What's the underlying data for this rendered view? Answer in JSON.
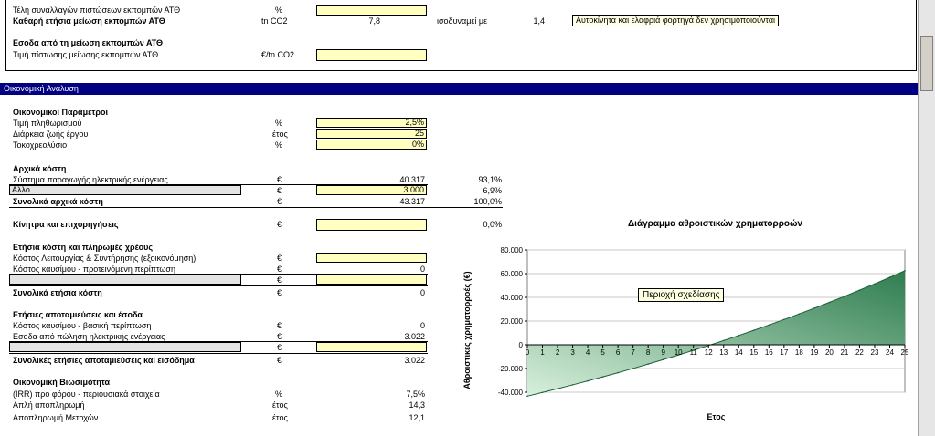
{
  "top": {
    "row1_label": "Τέλη συναλλαγών πιστώσεων εκπομπών ΑΤΘ",
    "row1_unit": "%",
    "row2_label": "Καθαρή ετήσια μείωση εκπομπών ΑΤΘ",
    "row2_unit": "tn CO2",
    "row2_value": "7,8",
    "row2_equiv": "ισοδυναμεί με",
    "row2_equiv_value": "1,4",
    "row2_note": "Αυτοκίνητα και ελαφριά φορτηγά δεν χρησιμοποιούνται",
    "section_title": "Εσοδα από τη μείωση εκπομπών ΑΤΘ",
    "row3_label": "Τιμή πίστωσης μείωσης εκπομπών ΑΤΘ",
    "row3_unit": "€/tn CO2"
  },
  "banner": "Οικονομική Ανάλυση",
  "params": {
    "title": "Οικονομικοί Παράμετροι",
    "rows": [
      {
        "label": "Τιμή πληθωρισμού",
        "unit": "%",
        "value": "2,5%"
      },
      {
        "label": "Διάρκεια ζωής έργου",
        "unit": "έτος",
        "value": "25"
      },
      {
        "label": "Τοκοχρεολύσιο",
        "unit": "%",
        "value": "0%"
      }
    ]
  },
  "initial": {
    "title": "Αρχικά κόστη",
    "row1_label": "Σύστημα παραγωγής ηλεκτρικής ενέργειας",
    "row1_unit": "€",
    "row1_value": "40.317",
    "row1_pct": "93,1%",
    "row2_label": "Αλλο",
    "row2_unit": "€",
    "row2_value": "3.000",
    "row2_pct": "6,9%",
    "total_label": "Συνολικά αρχικά κόστη",
    "total_unit": "€",
    "total_value": "43.317",
    "total_pct": "100,0%"
  },
  "incentives": {
    "label": "Κίνητρα και επιχορηγήσεις",
    "unit": "€",
    "pct": "0,0%"
  },
  "annual_costs": {
    "title": "Ετήσια κόστη και πληρωμές χρέους",
    "row1_label": "Κόστος Λειτουργίας & Συντήρησης (εξοικονόμηση)",
    "row1_unit": "€",
    "row2_label": "Κόστος καυσίμου - προτεινόμενη περίπτωση",
    "row2_unit": "€",
    "row2_value": "0",
    "row3_unit": "€",
    "total_label": "Συνολικά ετήσια κόστη",
    "total_unit": "€",
    "total_value": "0"
  },
  "savings": {
    "title": "Ετήσιες αποταμιεύσεις και έσοδα",
    "row1_label": "Κόστος καυσίμου - βασική περίπτωση",
    "row1_unit": "€",
    "row1_value": "0",
    "row2_label": "Εσοδα από πώληση ηλεκτρικής ενέργειας",
    "row2_unit": "€",
    "row2_value": "3.022",
    "row3_unit": "€",
    "total_label": "Συνολικές ετήσιες αποταμιεύσεις και εισόδημα",
    "total_unit": "€",
    "total_value": "3.022"
  },
  "viability": {
    "title": "Οικονομική Βιωσιμότητα",
    "rows": [
      {
        "label": "(IRR) προ φόρου - περιουσιακά στοιχεία",
        "unit": "%",
        "value": "7,5%"
      },
      {
        "label": "Απλή αποπληρωμή",
        "unit": "έτος",
        "value": "14,3"
      },
      {
        "label": "Αποπληρωμή Μετοχών",
        "unit": "έτος",
        "value": "12,1"
      }
    ]
  },
  "chart_tooltip": "Περιοχή σχεδίασης",
  "chart_data": {
    "type": "area",
    "title": "Διάγραμμα αθροιστικών χρηματορροών",
    "xlabel": "Ετος",
    "ylabel": "Αθροιστικές χρηματορροές (€)",
    "x": [
      0,
      1,
      2,
      3,
      4,
      5,
      6,
      7,
      8,
      9,
      10,
      11,
      12,
      13,
      14,
      15,
      16,
      17,
      18,
      19,
      20,
      21,
      22,
      23,
      24,
      25
    ],
    "x_labels": [
      "0",
      "1",
      "2",
      "3",
      "4",
      "5",
      "6",
      "7",
      "8",
      "9",
      "10",
      "11",
      "12",
      "13",
      "14",
      "15",
      "16",
      "17",
      "18",
      "19",
      "20",
      "21",
      "22",
      "23",
      "24",
      "25"
    ],
    "values": [
      -43317,
      -40222,
      -37049,
      -33796,
      -30462,
      -27045,
      -23542,
      -19952,
      -16272,
      -12500,
      -8634,
      -4671,
      -609,
      3555,
      7823,
      12197,
      16681,
      21277,
      25988,
      30817,
      35767,
      40841,
      46042,
      51373,
      56837,
      62438
    ],
    "yticks": [
      80000,
      60000,
      40000,
      20000,
      0,
      -20000,
      -40000
    ],
    "ytick_labels": [
      "80.000",
      "60.000",
      "40.000",
      "20.000",
      "0",
      "-20.000",
      "-40.000"
    ],
    "ylim": [
      -40000,
      80000
    ],
    "grid": true,
    "fill_colors": [
      "#2e7d4f",
      "#d8f0dc"
    ]
  }
}
